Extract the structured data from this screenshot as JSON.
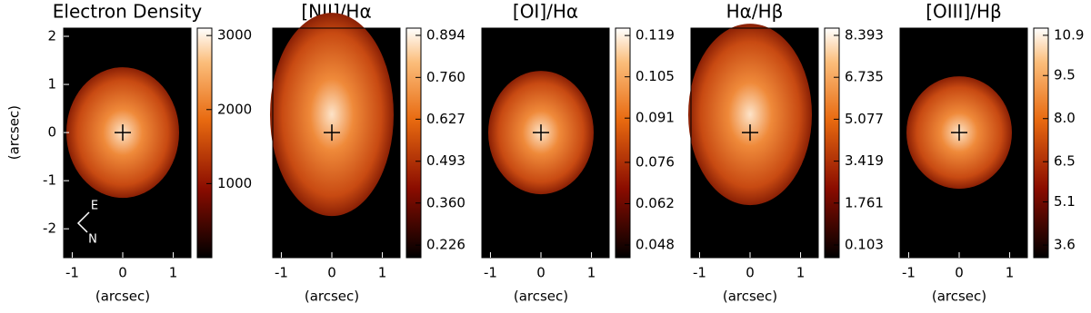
{
  "chart_data": [
    {
      "type": "image",
      "title": "Electron Density",
      "xlabel": "(arcsec)",
      "ylabel": "(arcsec)",
      "xlim": [
        -1.17,
        1.35
      ],
      "ylim": [
        -2.6,
        2.17
      ],
      "xticks": [
        -1,
        0,
        1
      ],
      "yticks": [
        2,
        1,
        0,
        -1,
        -2
      ],
      "clim": [
        0,
        3100
      ],
      "cticks": [
        1000,
        2000,
        3000
      ],
      "annotations": [
        "E",
        "N"
      ]
    },
    {
      "type": "image",
      "title": "[NII]/Hα",
      "xlabel": "(arcsec)",
      "xlim": [
        -1.17,
        1.35
      ],
      "ylim": [
        -2.6,
        2.17
      ],
      "xticks": [
        -1,
        0,
        1
      ],
      "clim": [
        0.186,
        0.917
      ],
      "cticks": [
        0.226,
        {
          "value": 0.36,
          "label": "0.360"
        },
        0.493,
        0.627,
        {
          "value": 0.76,
          "label": "0.760"
        },
        0.894
      ]
    },
    {
      "type": "image",
      "title": "[OI]/Hα",
      "xlabel": "(arcsec)",
      "xlim": [
        -1.17,
        1.35
      ],
      "ylim": [
        -2.6,
        2.17
      ],
      "xticks": [
        -1,
        0,
        1
      ],
      "clim": [
        0.0437,
        0.1215
      ],
      "cticks": [
        0.048,
        0.062,
        0.076,
        0.091,
        0.105,
        0.119
      ]
    },
    {
      "type": "image",
      "title": "Hα/Hβ",
      "xlabel": "(arcsec)",
      "xlim": [
        -1.17,
        1.35
      ],
      "ylim": [
        -2.6,
        2.17
      ],
      "xticks": [
        -1,
        0,
        1
      ],
      "clim": [
        -0.399,
        8.68
      ],
      "cticks": [
        0.103,
        1.761,
        3.419,
        5.077,
        6.735,
        8.393
      ]
    },
    {
      "type": "image",
      "title": "[OIII]/Hβ",
      "xlabel": "(arcsec)",
      "xlim": [
        -1.17,
        1.35
      ],
      "ylim": [
        -2.6,
        2.17
      ],
      "xticks": [
        -1,
        0,
        1
      ],
      "clim": [
        3.16,
        11.15
      ],
      "cticks": [
        3.6,
        5.1,
        6.5,
        {
          "value": 8,
          "label": "8.0"
        },
        9.5,
        10.9
      ]
    }
  ]
}
